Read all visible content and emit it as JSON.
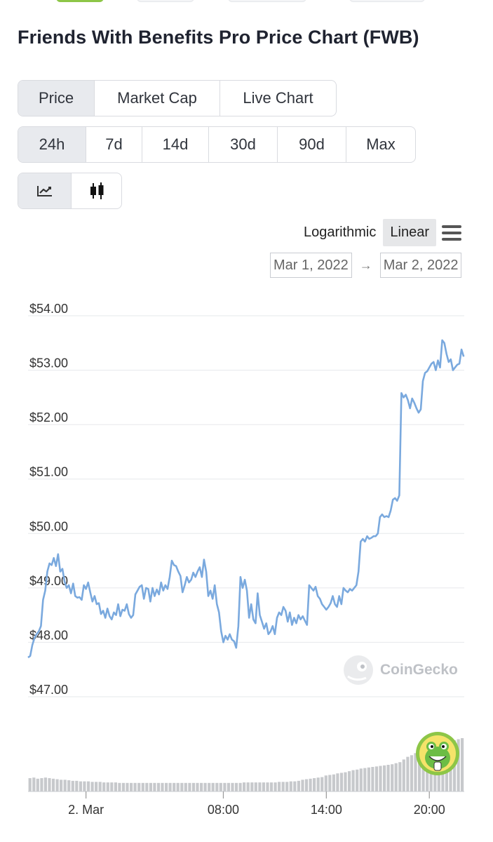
{
  "header": {
    "title": "Friends With Benefits Pro Price Chart (FWB)"
  },
  "view_tabs": [
    {
      "label": "Price",
      "active": true
    },
    {
      "label": "Market Cap",
      "active": false
    },
    {
      "label": "Live Chart",
      "active": false
    }
  ],
  "range_tabs": [
    {
      "label": "24h",
      "active": true
    },
    {
      "label": "7d",
      "active": false
    },
    {
      "label": "14d",
      "active": false
    },
    {
      "label": "30d",
      "active": false
    },
    {
      "label": "90d",
      "active": false
    },
    {
      "label": "Max",
      "active": false
    }
  ],
  "chart_type_toggle": {
    "line_icon": "line-chart-icon",
    "candle_icon": "candlestick-icon",
    "active": "line"
  },
  "scale": {
    "logarithmic_label": "Logarithmic",
    "linear_label": "Linear",
    "active": "Linear",
    "menu_icon": "hamburger-menu-icon"
  },
  "date_range": {
    "from": "Mar 1, 2022",
    "arrow": "→",
    "to": "Mar 2, 2022"
  },
  "watermark": {
    "label": "CoinGecko",
    "icon": "coingecko-logo-icon"
  },
  "colors": {
    "line": "#7aa9de",
    "volume": "#c7c9cc",
    "grid": "#e6e8eb",
    "accent": "#8dc647",
    "active_bg": "#e8eaee"
  },
  "chart_data": {
    "type": "line",
    "ylim": [
      47,
      54
    ],
    "yticks": [
      "$54.00",
      "$53.00",
      "$52.00",
      "$51.00",
      "$50.00",
      "$49.00",
      "$48.00",
      "$47.00"
    ],
    "ytick_values": [
      54,
      53,
      52,
      51,
      50,
      49,
      48,
      47
    ],
    "xlim": [
      0,
      100
    ],
    "xticks": [
      {
        "label": "2. Mar",
        "x": 13.5
      },
      {
        "label": "08:00",
        "x": 45.5
      },
      {
        "label": "14:00",
        "x": 69.5
      },
      {
        "label": "20:00",
        "x": 93.5
      }
    ],
    "series": [
      {
        "values": [
          [
            0,
            47.72
          ],
          [
            0.5,
            47.75
          ],
          [
            1,
            47.95
          ],
          [
            1.5,
            48.08
          ],
          [
            2,
            48.15
          ],
          [
            2.5,
            48.2
          ],
          [
            3,
            48.3
          ],
          [
            3.5,
            48.78
          ],
          [
            4,
            48.95
          ],
          [
            4.5,
            49.3
          ],
          [
            5,
            49.45
          ],
          [
            5.5,
            49.42
          ],
          [
            6,
            49.55
          ],
          [
            6.5,
            49.4
          ],
          [
            7,
            49.62
          ],
          [
            7.5,
            49.3
          ],
          [
            8,
            49.35
          ],
          [
            8.5,
            49.12
          ],
          [
            9,
            49.0
          ],
          [
            9.5,
            49.05
          ],
          [
            10,
            48.9
          ],
          [
            10.5,
            49.08
          ],
          [
            11,
            48.85
          ],
          [
            11.5,
            48.82
          ],
          [
            12,
            48.83
          ],
          [
            12.5,
            48.78
          ],
          [
            13,
            49.05
          ],
          [
            13.5,
            48.98
          ],
          [
            14,
            49.1
          ],
          [
            14.5,
            48.92
          ],
          [
            15,
            48.75
          ],
          [
            15.5,
            48.85
          ],
          [
            16,
            48.7
          ],
          [
            16.5,
            48.72
          ],
          [
            17,
            48.52
          ],
          [
            17.5,
            48.58
          ],
          [
            18,
            48.45
          ],
          [
            18.5,
            48.62
          ],
          [
            19,
            48.48
          ],
          [
            19.5,
            48.42
          ],
          [
            20,
            48.55
          ],
          [
            20.5,
            48.5
          ],
          [
            21,
            48.7
          ],
          [
            21.5,
            48.48
          ],
          [
            22,
            48.6
          ],
          [
            22.5,
            48.58
          ],
          [
            23,
            48.7
          ],
          [
            23.5,
            48.52
          ],
          [
            24,
            48.45
          ],
          [
            24.5,
            48.5
          ],
          [
            25,
            48.88
          ],
          [
            25.5,
            48.95
          ],
          [
            26,
            49.02
          ],
          [
            26.5,
            49.05
          ],
          [
            27,
            48.8
          ],
          [
            27.5,
            49.0
          ],
          [
            28,
            48.98
          ],
          [
            28.5,
            48.75
          ],
          [
            29,
            49.0
          ],
          [
            29.5,
            48.85
          ],
          [
            30,
            48.97
          ],
          [
            30.5,
            48.88
          ],
          [
            31,
            49.1
          ],
          [
            31.5,
            48.95
          ],
          [
            32,
            49.05
          ],
          [
            32.5,
            48.98
          ],
          [
            33,
            49.2
          ],
          [
            33.5,
            49.5
          ],
          [
            34,
            49.42
          ],
          [
            34.5,
            49.4
          ],
          [
            35,
            49.3
          ],
          [
            35.5,
            49.22
          ],
          [
            36,
            48.92
          ],
          [
            36.5,
            49.05
          ],
          [
            37,
            49.2
          ],
          [
            37.5,
            49.1
          ],
          [
            38,
            49.15
          ],
          [
            38.5,
            49.28
          ],
          [
            39,
            49.2
          ],
          [
            39.5,
            49.3
          ],
          [
            40,
            49.38
          ],
          [
            40.5,
            49.2
          ],
          [
            41,
            49.52
          ],
          [
            41.5,
            49.3
          ],
          [
            42,
            48.85
          ],
          [
            42.5,
            48.95
          ],
          [
            43,
            48.8
          ],
          [
            43.5,
            49.05
          ],
          [
            44,
            48.7
          ],
          [
            44.5,
            48.55
          ],
          [
            45,
            48.2
          ],
          [
            45.5,
            48.0
          ],
          [
            46,
            48.12
          ],
          [
            46.5,
            48.05
          ],
          [
            47,
            48.15
          ],
          [
            47.5,
            48.05
          ],
          [
            48,
            48.02
          ],
          [
            48.5,
            47.9
          ],
          [
            49,
            48.3
          ],
          [
            49.5,
            49.2
          ],
          [
            50,
            49.0
          ],
          [
            50.5,
            49.15
          ],
          [
            51,
            48.95
          ],
          [
            51.5,
            48.45
          ],
          [
            52,
            48.7
          ],
          [
            52.5,
            48.42
          ],
          [
            53,
            48.35
          ],
          [
            53.5,
            48.9
          ],
          [
            54,
            48.5
          ],
          [
            54.5,
            48.38
          ],
          [
            55,
            48.25
          ],
          [
            55.5,
            48.35
          ],
          [
            56,
            48.15
          ],
          [
            56.5,
            48.2
          ],
          [
            57,
            48.3
          ],
          [
            57.5,
            48.15
          ],
          [
            58,
            48.45
          ],
          [
            58.5,
            48.55
          ],
          [
            59,
            48.5
          ],
          [
            59.5,
            48.65
          ],
          [
            60,
            48.58
          ],
          [
            60.5,
            48.38
          ],
          [
            61,
            48.55
          ],
          [
            61.5,
            48.32
          ],
          [
            62,
            48.45
          ],
          [
            62.5,
            48.35
          ],
          [
            63,
            48.5
          ],
          [
            63.5,
            48.42
          ],
          [
            64,
            48.48
          ],
          [
            64.5,
            48.4
          ],
          [
            65,
            48.32
          ],
          [
            65.5,
            49.05
          ],
          [
            66,
            49.0
          ],
          [
            66.5,
            48.95
          ],
          [
            67,
            49.02
          ],
          [
            67.5,
            48.85
          ],
          [
            68,
            48.8
          ],
          [
            68.5,
            48.7
          ],
          [
            69,
            48.65
          ],
          [
            69.5,
            48.6
          ],
          [
            70,
            48.65
          ],
          [
            70.5,
            48.72
          ],
          [
            71,
            48.85
          ],
          [
            71.5,
            48.7
          ],
          [
            72,
            48.65
          ],
          [
            72.5,
            48.85
          ],
          [
            73,
            48.7
          ],
          [
            73.5,
            49.0
          ],
          [
            74,
            48.95
          ],
          [
            74.5,
            48.92
          ],
          [
            75,
            48.98
          ],
          [
            75.5,
            48.95
          ],
          [
            76,
            49.0
          ],
          [
            76.5,
            49.05
          ],
          [
            77,
            49.3
          ],
          [
            77.5,
            49.85
          ],
          [
            78,
            49.9
          ],
          [
            78.5,
            49.85
          ],
          [
            79,
            49.95
          ],
          [
            79.5,
            49.9
          ],
          [
            80,
            49.92
          ],
          [
            80.5,
            49.95
          ],
          [
            81,
            49.95
          ],
          [
            81.5,
            50.0
          ],
          [
            82,
            50.3
          ],
          [
            82.5,
            50.35
          ],
          [
            83,
            50.3
          ],
          [
            83.5,
            50.32
          ],
          [
            84,
            50.3
          ],
          [
            84.5,
            50.42
          ],
          [
            85,
            50.62
          ],
          [
            85.5,
            50.65
          ],
          [
            86,
            50.6
          ],
          [
            86.5,
            50.7
          ],
          [
            87,
            52.58
          ],
          [
            87.5,
            52.5
          ],
          [
            88,
            52.55
          ],
          [
            88.5,
            52.45
          ],
          [
            89,
            52.3
          ],
          [
            89.5,
            52.48
          ],
          [
            90,
            52.4
          ],
          [
            90.5,
            52.3
          ],
          [
            91,
            52.22
          ],
          [
            91.5,
            52.28
          ],
          [
            92,
            52.8
          ],
          [
            92.5,
            52.95
          ],
          [
            93,
            52.98
          ],
          [
            93.5,
            53.05
          ],
          [
            94,
            53.12
          ],
          [
            94.5,
            53.15
          ],
          [
            95,
            53.0
          ],
          [
            95.5,
            53.18
          ],
          [
            96,
            53.05
          ],
          [
            96.5,
            53.55
          ],
          [
            97,
            53.5
          ],
          [
            97.5,
            53.3
          ],
          [
            98,
            53.15
          ],
          [
            98.5,
            53.2
          ],
          [
            99,
            53.0
          ],
          [
            99.5,
            53.05
          ],
          [
            100,
            53.1
          ],
          [
            100.5,
            53.12
          ],
          [
            101,
            53.38
          ],
          [
            101.5,
            53.25
          ]
        ]
      }
    ],
    "volume_relative": [
      0.25,
      0.26,
      0.24,
      0.25,
      0.26,
      0.25,
      0.24,
      0.23,
      0.22,
      0.22,
      0.21,
      0.2,
      0.2,
      0.19,
      0.19,
      0.19,
      0.18,
      0.18,
      0.18,
      0.17,
      0.17,
      0.17,
      0.17,
      0.16,
      0.16,
      0.16,
      0.16,
      0.16,
      0.16,
      0.16,
      0.16,
      0.16,
      0.16,
      0.16,
      0.16,
      0.16,
      0.16,
      0.16,
      0.16,
      0.16,
      0.16,
      0.16,
      0.16,
      0.16,
      0.16,
      0.16,
      0.16,
      0.16,
      0.16,
      0.16,
      0.16,
      0.16,
      0.16,
      0.16,
      0.16,
      0.17,
      0.17,
      0.17,
      0.17,
      0.17,
      0.17,
      0.17,
      0.17,
      0.17,
      0.18,
      0.18,
      0.18,
      0.19,
      0.19,
      0.2,
      0.22,
      0.23,
      0.24,
      0.25,
      0.26,
      0.27,
      0.3,
      0.31,
      0.32,
      0.34,
      0.35,
      0.36,
      0.38,
      0.4,
      0.41,
      0.43,
      0.44,
      0.45,
      0.46,
      0.47,
      0.48,
      0.49,
      0.5,
      0.51,
      0.53,
      0.55,
      0.6,
      0.65,
      0.68,
      0.72,
      0.75,
      0.78,
      0.8,
      0.84,
      0.86,
      0.88,
      0.9,
      0.92,
      0.94,
      0.96,
      0.98,
      1.0
    ]
  }
}
